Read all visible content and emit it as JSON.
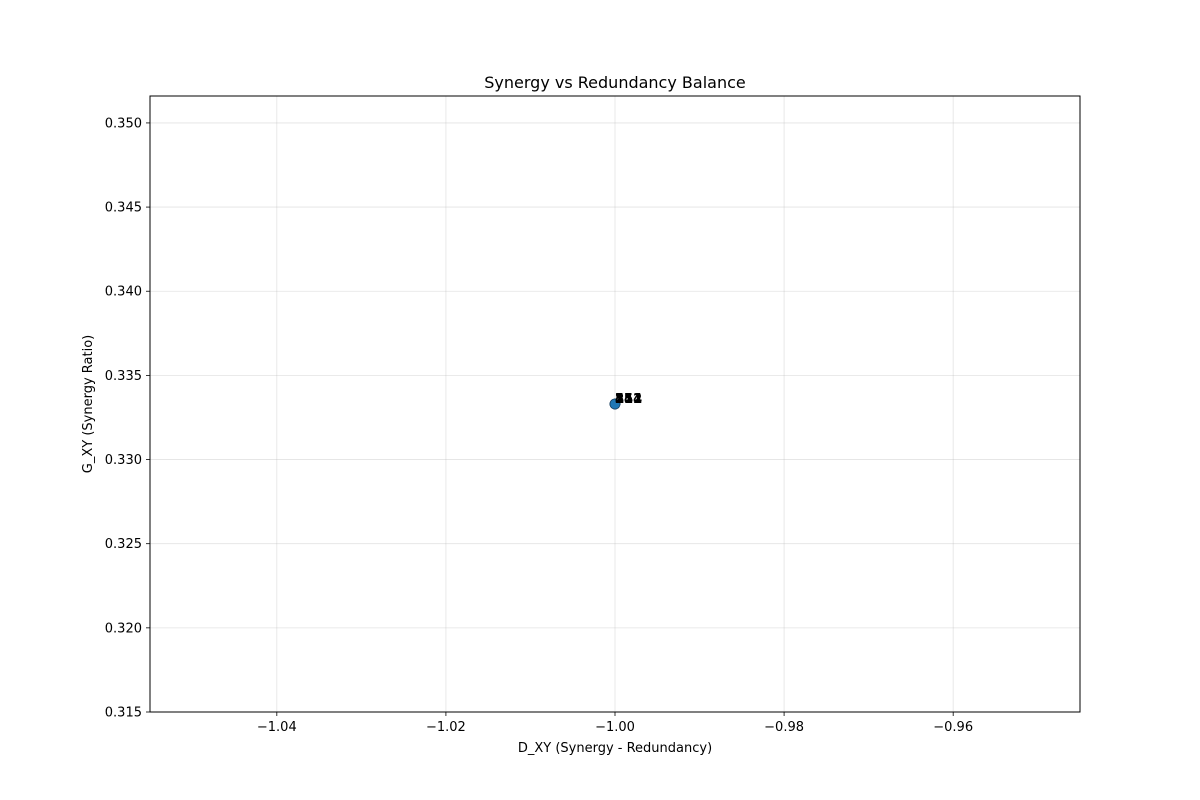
{
  "chart_data": {
    "type": "scatter",
    "title": "Synergy vs Redundancy Balance",
    "xlabel": "D_XY (Synergy - Redundancy)",
    "ylabel": "G_XY (Synergy Ratio)",
    "xlim": [
      -1.055,
      -0.945
    ],
    "ylim": [
      0.315,
      0.3516
    ],
    "xticks": [
      -1.04,
      -1.02,
      -1.0,
      -0.98,
      -0.96
    ],
    "xtick_labels": [
      "−1.04",
      "−1.02",
      "−1.00",
      "−0.98",
      "−0.96"
    ],
    "yticks": [
      0.315,
      0.32,
      0.325,
      0.33,
      0.335,
      0.34,
      0.345,
      0.35
    ],
    "ytick_labels": [
      "0.315",
      "0.320",
      "0.325",
      "0.330",
      "0.335",
      "0.340",
      "0.345",
      "0.350"
    ],
    "grid": true,
    "point_color": "#1f77b4",
    "points": [
      {
        "x": -1.0,
        "y": 0.3333,
        "label": "1"
      },
      {
        "x": -1.0,
        "y": 0.3333,
        "label": "2"
      },
      {
        "x": -1.0,
        "y": 0.3333,
        "label": "3"
      },
      {
        "x": -1.0,
        "y": 0.3333,
        "label": "4"
      },
      {
        "x": -1.0,
        "y": 0.3333,
        "label": "5"
      },
      {
        "x": -1.0,
        "y": 0.3333,
        "label": "11"
      },
      {
        "x": -1.0,
        "y": 0.3333,
        "label": "25"
      },
      {
        "x": -1.0,
        "y": 0.3333,
        "label": "34"
      },
      {
        "x": -1.0,
        "y": 0.3333,
        "label": "152"
      },
      {
        "x": -1.0,
        "y": 0.3333,
        "label": "254"
      },
      {
        "x": -1.0,
        "y": 0.3333,
        "label": "351"
      }
    ]
  }
}
